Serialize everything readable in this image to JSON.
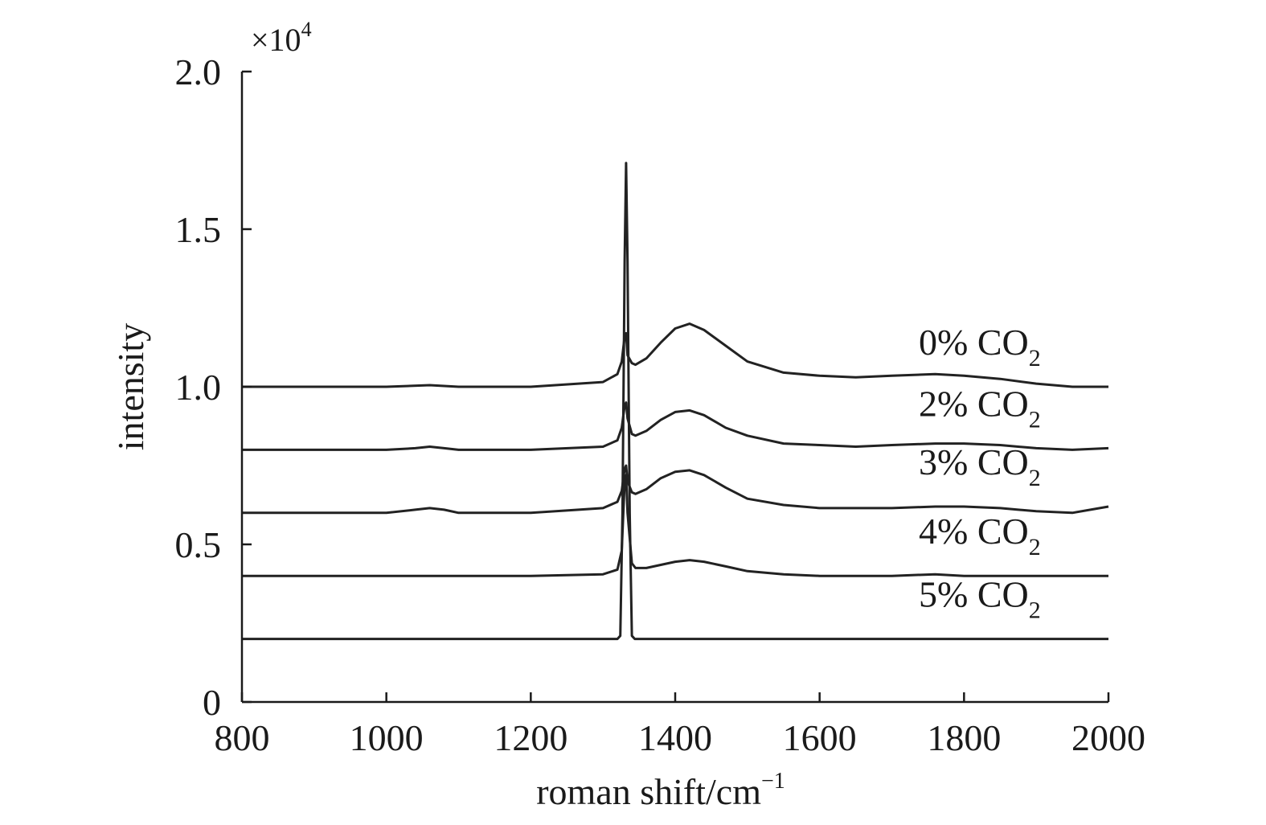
{
  "chart_data": {
    "type": "line",
    "xlabel": "roman shift/cm",
    "xlabel_superscript": "−1",
    "ylabel": "intensity",
    "y_multiplier_prefix": "×10",
    "y_multiplier_exponent": "4",
    "xlim": [
      800,
      2000
    ],
    "ylim": [
      0,
      2.0
    ],
    "x_ticks": [
      800,
      1000,
      1200,
      1400,
      1600,
      1800,
      2000
    ],
    "x_tick_labels": [
      "800",
      "1000",
      "1200",
      "1400",
      "1600",
      "1800",
      "2000"
    ],
    "y_ticks": [
      0,
      0.5,
      1.0,
      1.5,
      2.0
    ],
    "y_tick_labels": [
      "0",
      "0.5",
      "1.0",
      "1.5",
      "2.0"
    ],
    "grid": false,
    "line_color": "#222222",
    "series": [
      {
        "name": "0% CO2",
        "label_main": "0% CO",
        "label_sub": "2",
        "x": [
          800,
          900,
          1000,
          1060,
          1100,
          1200,
          1300,
          1320,
          1326,
          1330,
          1332,
          1334,
          1340,
          1345,
          1360,
          1380,
          1400,
          1420,
          1440,
          1470,
          1500,
          1550,
          1600,
          1650,
          1700,
          1760,
          1800,
          1850,
          1900,
          1950,
          2000
        ],
        "y": [
          1.0,
          1.0,
          1.0,
          1.005,
          1.0,
          1.0,
          1.015,
          1.04,
          1.08,
          1.16,
          1.17,
          1.1,
          1.075,
          1.07,
          1.09,
          1.14,
          1.185,
          1.2,
          1.18,
          1.13,
          1.08,
          1.045,
          1.035,
          1.03,
          1.035,
          1.04,
          1.035,
          1.025,
          1.01,
          1.0,
          1.0
        ]
      },
      {
        "name": "2% CO2",
        "label_main": "2% CO",
        "label_sub": "2",
        "x": [
          800,
          900,
          1000,
          1040,
          1060,
          1080,
          1100,
          1200,
          1300,
          1320,
          1326,
          1330,
          1332,
          1334,
          1340,
          1345,
          1360,
          1380,
          1400,
          1420,
          1440,
          1470,
          1500,
          1550,
          1600,
          1650,
          1700,
          1760,
          1800,
          1850,
          1900,
          1950,
          2000
        ],
        "y": [
          0.8,
          0.8,
          0.8,
          0.805,
          0.81,
          0.805,
          0.8,
          0.8,
          0.81,
          0.83,
          0.87,
          0.94,
          0.95,
          0.9,
          0.85,
          0.845,
          0.86,
          0.895,
          0.92,
          0.925,
          0.91,
          0.87,
          0.845,
          0.82,
          0.815,
          0.81,
          0.815,
          0.82,
          0.82,
          0.815,
          0.805,
          0.8,
          0.805
        ]
      },
      {
        "name": "3% CO2",
        "label_main": "3% CO",
        "label_sub": "2",
        "x": [
          800,
          900,
          1000,
          1040,
          1060,
          1080,
          1100,
          1200,
          1300,
          1320,
          1326,
          1330,
          1332,
          1334,
          1340,
          1345,
          1360,
          1380,
          1400,
          1420,
          1440,
          1470,
          1500,
          1550,
          1600,
          1650,
          1700,
          1760,
          1800,
          1850,
          1900,
          1950,
          2000
        ],
        "y": [
          0.6,
          0.6,
          0.6,
          0.61,
          0.615,
          0.61,
          0.6,
          0.6,
          0.615,
          0.635,
          0.67,
          0.74,
          0.75,
          0.7,
          0.665,
          0.66,
          0.675,
          0.71,
          0.73,
          0.735,
          0.72,
          0.68,
          0.645,
          0.625,
          0.615,
          0.615,
          0.615,
          0.62,
          0.62,
          0.615,
          0.605,
          0.6,
          0.62
        ]
      },
      {
        "name": "4% CO2",
        "label_main": "4% CO",
        "label_sub": "2",
        "x": [
          800,
          900,
          1000,
          1100,
          1200,
          1300,
          1320,
          1326,
          1330,
          1332,
          1334,
          1340,
          1345,
          1360,
          1380,
          1400,
          1420,
          1440,
          1470,
          1500,
          1550,
          1600,
          1650,
          1700,
          1760,
          1800,
          1850,
          1900,
          1950,
          2000
        ],
        "y": [
          0.4,
          0.4,
          0.4,
          0.4,
          0.4,
          0.405,
          0.42,
          0.48,
          0.7,
          0.72,
          0.6,
          0.44,
          0.425,
          0.425,
          0.435,
          0.445,
          0.45,
          0.445,
          0.43,
          0.415,
          0.405,
          0.4,
          0.4,
          0.4,
          0.405,
          0.4,
          0.4,
          0.4,
          0.4,
          0.4
        ]
      },
      {
        "name": "5% CO2",
        "label_main": "5% CO",
        "label_sub": "2",
        "x": [
          800,
          900,
          1000,
          1100,
          1200,
          1300,
          1320,
          1324,
          1327,
          1330,
          1332,
          1334,
          1337,
          1340,
          1344,
          1360,
          1400,
          1500,
          1600,
          1700,
          1800,
          1900,
          2000
        ],
        "y": [
          0.2,
          0.2,
          0.2,
          0.2,
          0.2,
          0.2,
          0.2,
          0.21,
          0.6,
          1.4,
          1.71,
          1.4,
          0.6,
          0.21,
          0.2,
          0.2,
          0.2,
          0.2,
          0.2,
          0.2,
          0.2,
          0.2,
          0.2
        ]
      }
    ]
  }
}
